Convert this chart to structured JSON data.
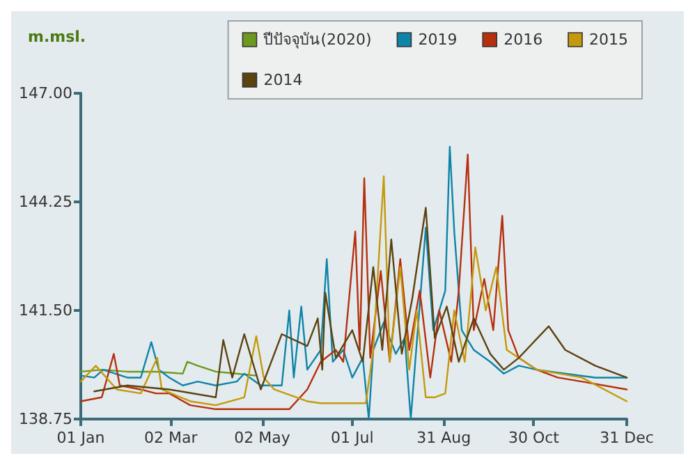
{
  "chart_data": {
    "type": "line",
    "ylabel": "m.msl.",
    "x": [
      "--01-01",
      "--01-15",
      "--02-01",
      "--02-20",
      "--03-10",
      "--03-13",
      "--03-20",
      "--04-01",
      "--04-15",
      "--04-28"
    ],
    "xlim": [
      "--01-01",
      "--12-31"
    ],
    "xticks": [
      {
        "value": "--01-01",
        "label": "01 Jan"
      },
      {
        "value": "--03-02",
        "label": "02 Mar"
      },
      {
        "value": "--05-02",
        "label": "02 May"
      },
      {
        "value": "--07-01",
        "label": "01 Jul"
      },
      {
        "value": "--08-31",
        "label": "31 Aug"
      },
      {
        "value": "--10-30",
        "label": "30 Oct"
      },
      {
        "value": "--12-31",
        "label": "31 Dec"
      }
    ],
    "ylim": [
      138.75,
      147
    ],
    "yticks": [
      {
        "value": 138.75,
        "label": "138.75"
      },
      {
        "value": 141.5,
        "label": "141.50"
      },
      {
        "value": 144.25,
        "label": "144.25"
      },
      {
        "value": 147,
        "label": "147.00"
      }
    ],
    "legend": "top right",
    "series": [
      {
        "name": "ปีปัจจุบัน(2020)",
        "color": "#6b9a1f",
        "values": [
          139.95,
          140.0,
          139.95,
          139.95,
          139.9,
          140.2,
          140.1,
          139.95,
          139.9,
          139.85
        ]
      },
      {
        "name": "2019",
        "color": "#0e84a8",
        "x": [
          "--01-01",
          "--01-10",
          "--01-16",
          "--02-01",
          "--02-10",
          "--02-17",
          "--02-22",
          "--03-01",
          "--03-10",
          "--03-20",
          "--04-01",
          "--04-15",
          "--04-20",
          "--05-01",
          "--05-15",
          "--05-20",
          "--05-23",
          "--05-28",
          "--06-01",
          "--06-10",
          "--06-14",
          "--06-18",
          "--06-25",
          "--07-01",
          "--07-08",
          "--07-12",
          "--07-15",
          "--07-22",
          "--07-30",
          "--08-05",
          "--08-09",
          "--08-12",
          "--08-19",
          "--08-24",
          "--09-01",
          "--09-04",
          "--09-07",
          "--09-12",
          "--09-20",
          "--10-01",
          "--10-10",
          "--10-20",
          "--11-01",
          "--11-20",
          "--12-10",
          "--12-31"
        ],
        "values": [
          139.85,
          139.8,
          140.0,
          139.8,
          139.8,
          140.7,
          140.0,
          139.8,
          139.6,
          139.7,
          139.6,
          139.7,
          139.9,
          139.6,
          139.6,
          141.5,
          139.8,
          141.6,
          140.0,
          140.5,
          142.8,
          140.2,
          140.5,
          139.8,
          140.3,
          138.75,
          140.5,
          141.2,
          140.4,
          140.8,
          138.75,
          140.2,
          143.6,
          141.0,
          142.0,
          145.65,
          143.5,
          141.0,
          140.5,
          140.2,
          139.9,
          140.1,
          140.0,
          139.9,
          139.8,
          139.8
        ]
      },
      {
        "name": "2016",
        "color": "#b5300e",
        "x": [
          "--01-01",
          "--01-15",
          "--01-23",
          "--01-27",
          "--02-10",
          "--02-20",
          "--03-01",
          "--03-15",
          "--04-01",
          "--05-01",
          "--05-20",
          "--06-01",
          "--06-10",
          "--06-20",
          "--06-25",
          "--07-03",
          "--07-06",
          "--07-09",
          "--07-13",
          "--07-20",
          "--07-26",
          "--08-02",
          "--08-08",
          "--08-15",
          "--08-22",
          "--08-28",
          "--09-05",
          "--09-10",
          "--09-16",
          "--09-20",
          "--09-27",
          "--10-03",
          "--10-09",
          "--10-13",
          "--10-20",
          "--11-01",
          "--11-15",
          "--12-01",
          "--12-31"
        ],
        "values": [
          139.2,
          139.3,
          140.4,
          139.6,
          139.5,
          139.4,
          139.4,
          139.1,
          139.0,
          139.0,
          139.0,
          139.5,
          140.2,
          140.5,
          140.2,
          143.5,
          140.5,
          144.85,
          140.3,
          142.5,
          140.2,
          142.8,
          140.5,
          142.0,
          139.8,
          141.5,
          140.2,
          142.0,
          145.45,
          141.0,
          142.3,
          141.0,
          143.9,
          141.0,
          140.3,
          140.0,
          139.8,
          139.7,
          139.5
        ]
      },
      {
        "name": "2015",
        "color": "#c49a0c",
        "x": [
          "--01-01",
          "--01-11",
          "--01-25",
          "--02-10",
          "--02-21",
          "--02-24",
          "--03-15",
          "--04-01",
          "--04-20",
          "--04-28",
          "--05-03",
          "--05-10",
          "--06-01",
          "--06-10",
          "--07-10",
          "--07-15",
          "--07-22",
          "--07-26",
          "--08-02",
          "--08-08",
          "--08-13",
          "--08-19",
          "--08-25",
          "--09-01",
          "--09-07",
          "--09-14",
          "--09-21",
          "--09-28",
          "--10-05",
          "--10-12",
          "--11-01",
          "--12-01",
          "--12-31"
        ],
        "values": [
          139.7,
          140.1,
          139.5,
          139.4,
          140.3,
          139.5,
          139.2,
          139.1,
          139.3,
          140.85,
          139.8,
          139.5,
          139.2,
          139.15,
          139.15,
          140.5,
          144.9,
          140.2,
          142.6,
          140.0,
          141.5,
          139.3,
          139.3,
          139.4,
          141.5,
          140.2,
          143.1,
          141.5,
          142.6,
          140.5,
          140.0,
          139.8,
          139.2
        ]
      },
      {
        "name": "2014",
        "color": "#5c4210",
        "x": [
          "--01-10",
          "--02-01",
          "--03-01",
          "--04-01",
          "--04-06",
          "--04-12",
          "--04-20",
          "--05-01",
          "--05-15",
          "--06-01",
          "--06-08",
          "--06-11",
          "--06-13",
          "--06-20",
          "--07-01",
          "--07-08",
          "--07-15",
          "--07-21",
          "--07-27",
          "--08-03",
          "--08-10",
          "--08-19",
          "--08-25",
          "--09-02",
          "--09-10",
          "--09-20",
          "--10-01",
          "--10-10",
          "--10-20",
          "--11-09",
          "--11-20",
          "--12-10",
          "--12-31"
        ],
        "values": [
          139.45,
          139.6,
          139.5,
          139.3,
          140.75,
          139.8,
          140.9,
          139.5,
          140.9,
          140.6,
          141.3,
          140.0,
          141.95,
          140.3,
          141.0,
          140.2,
          142.6,
          140.5,
          143.3,
          140.4,
          141.8,
          144.1,
          140.8,
          141.6,
          140.2,
          141.3,
          140.4,
          140.0,
          140.3,
          141.1,
          140.5,
          140.1,
          139.8
        ]
      }
    ]
  }
}
